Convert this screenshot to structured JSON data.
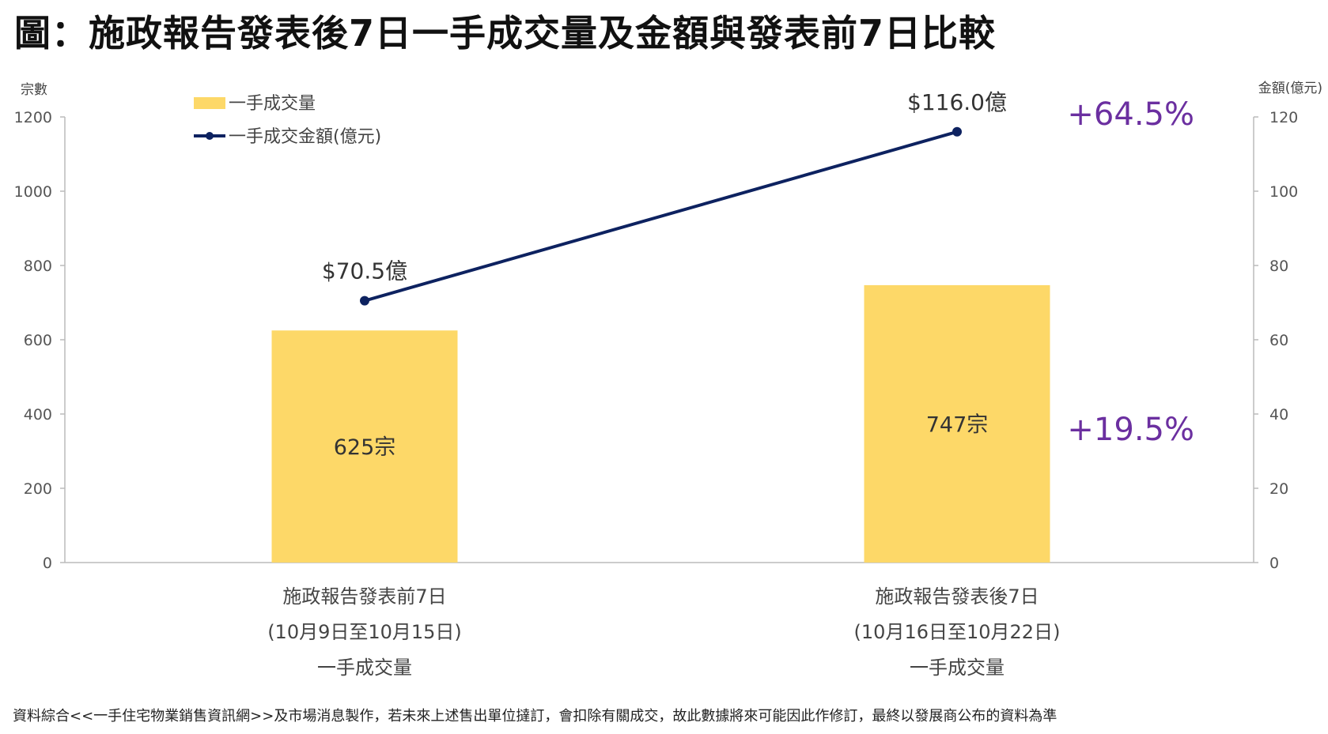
{
  "title": "圖：施政報告發表後7日一手成交量及金額與發表前7日比較",
  "source": "資料綜合<<一手住宅物業銷售資訊網>>及市場消息製作，若未來上述售出單位撻訂，會扣除有關成交，故此數據將來可能因此作修訂，最終以發展商公布的資料為準",
  "colors": {
    "bar": "#FDD868",
    "line": "#0D2260",
    "percent": "#6B2FA0",
    "axis": "#BBBBBB"
  },
  "chart_data": {
    "type": "bar",
    "categories": [
      [
        "施政報告發表前7日",
        "(10月9日至10月15日)",
        "一手成交量"
      ],
      [
        "施政報告發表後7日",
        "(10月16日至10月22日)",
        "一手成交量"
      ]
    ],
    "series": [
      {
        "name": "一手成交量",
        "type": "bar",
        "axis": "left",
        "values": [
          625,
          747
        ],
        "labels": [
          "625宗",
          "747宗"
        ]
      },
      {
        "name": "一手成交金額(億元)",
        "type": "line",
        "axis": "right",
        "values": [
          70.5,
          116.0
        ],
        "labels": [
          "$70.5億",
          "$116.0億"
        ]
      }
    ],
    "y_left": {
      "label": "宗數",
      "range": [
        0,
        1200
      ],
      "ticks": [
        0,
        200,
        400,
        600,
        800,
        1000,
        1200
      ]
    },
    "y_right": {
      "label": "金額(億元)",
      "range": [
        0,
        120
      ],
      "ticks": [
        0,
        20,
        40,
        60,
        80,
        100,
        120
      ]
    },
    "change_annotations": {
      "amount": "+64.5%",
      "volume": "+19.5%"
    },
    "legend_position": "top-left",
    "grid": false
  }
}
